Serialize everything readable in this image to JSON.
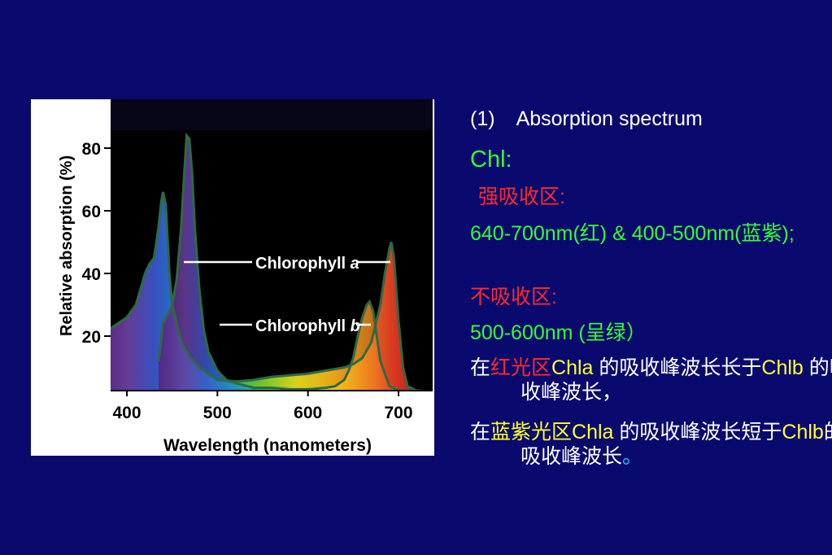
{
  "colors": {
    "background": "#0a0a6e",
    "heading": "#ffffff",
    "green_text": "#33ff33",
    "red_text": "#ff2a2a",
    "yellow_text": "#ffff33",
    "chart_bg": "#000000",
    "curve_stroke": "#2e6a43"
  },
  "notes": {
    "heading_num": "(1)",
    "heading_text": "Absorption spectrum",
    "chl": "Chl:",
    "strong_label": "强吸收区:",
    "strong_range": "640-700nm(红) & 400-500nm(蓝紫);",
    "none_label": "不吸收区:",
    "none_range": "500-600nm (呈绿）",
    "s1_a": "在",
    "s1_b": "红光区",
    "s1_c": "Chla",
    "s1_d": " 的吸收峰波长长于",
    "s1_e": "Chlb",
    "s1_f": " 的吸收峰波长，",
    "s2_a": "在",
    "s2_b": "蓝紫光区",
    "s2_c": "Chla",
    "s2_d": " 的吸收峰波长短于",
    "s2_e": "Chlb",
    "s2_f": "的吸收峰波长",
    "s2_g": "。"
  },
  "chart_data": {
    "type": "line",
    "title": "",
    "xlabel": "Wavelength (nanometers)",
    "ylabel": "Relative absorption (%)",
    "xlim": [
      365,
      730
    ],
    "ylim": [
      0,
      90
    ],
    "x_ticks": [
      400,
      500,
      600,
      700
    ],
    "y_ticks": [
      20,
      40,
      60,
      80
    ],
    "grid": false,
    "series": [
      {
        "name": "Chlorophyll a",
        "label_prefix": "Chlorophyll ",
        "label_suffix": "a",
        "x": [
          365,
          380,
          400,
          410,
          420,
          425,
          430,
          435,
          438,
          440,
          443,
          447,
          450,
          460,
          470,
          480,
          490,
          500,
          520,
          540,
          560,
          580,
          600,
          620,
          640,
          650,
          660,
          670,
          680,
          685,
          690,
          692,
          695,
          700,
          705,
          710,
          720,
          725
        ],
        "y": [
          20,
          22,
          26,
          30,
          40,
          43,
          45,
          55,
          63,
          66,
          62,
          40,
          30,
          18,
          13,
          10,
          8,
          6,
          5.5,
          6,
          7,
          7.5,
          8,
          9,
          10,
          11,
          13,
          18,
          30,
          40,
          48,
          50,
          45,
          25,
          10,
          4,
          1,
          0
        ]
      },
      {
        "name": "Chlorophyll b",
        "label_prefix": "Chlorophyll ",
        "label_suffix": "b",
        "x": [
          435,
          440,
          445,
          450,
          455,
          460,
          463,
          466,
          469,
          472,
          475,
          480,
          485,
          490,
          500,
          510,
          520,
          540,
          560,
          580,
          600,
          620,
          630,
          640,
          645,
          650,
          655,
          660,
          665,
          668,
          672,
          675,
          680,
          690,
          700,
          710,
          720,
          725
        ],
        "y": [
          12,
          24,
          27,
          30,
          38,
          55,
          70,
          84,
          83,
          72,
          55,
          35,
          22,
          15,
          9,
          6,
          5,
          3.5,
          3.5,
          3,
          3,
          3.5,
          4,
          6,
          9,
          13,
          20,
          26,
          30,
          31,
          28,
          22,
          12,
          4,
          2,
          1,
          0,
          0
        ]
      }
    ]
  }
}
